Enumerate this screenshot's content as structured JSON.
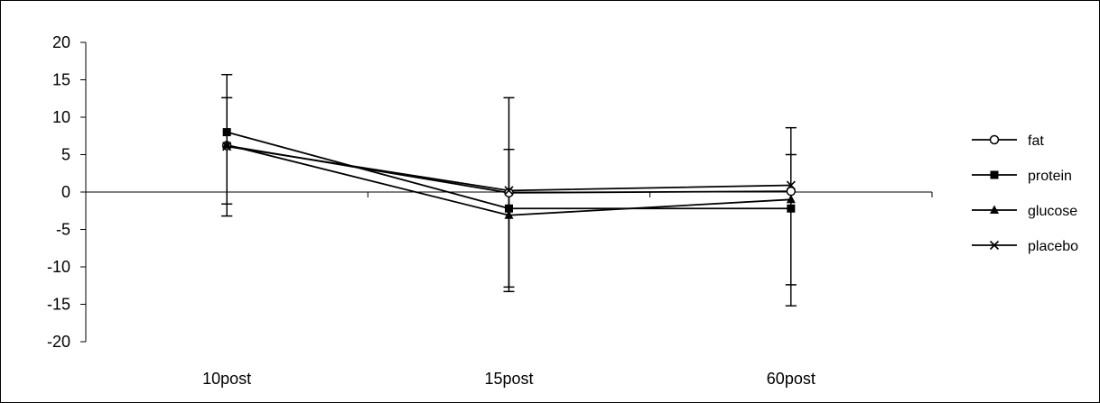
{
  "chart_data": {
    "type": "line",
    "title": "",
    "xlabel": "",
    "ylabel": "",
    "categories": [
      "10post",
      "15post",
      "60post"
    ],
    "ylim": [
      -20,
      20
    ],
    "yticks": [
      20,
      15,
      10,
      5,
      0,
      -5,
      -10,
      -15,
      -20
    ],
    "grid": false,
    "legend": {
      "position": "right"
    },
    "series": [
      {
        "name": "fat",
        "marker": "circle-open",
        "values": [
          6.2,
          -0.1,
          0.1
        ],
        "error_low": [
          -1.6,
          -12.7,
          -12.4
        ],
        "error_high": [
          12.6,
          12.6,
          8.6
        ]
      },
      {
        "name": "protein",
        "marker": "square",
        "values": [
          8.0,
          -2.2,
          -2.2
        ],
        "error_low": [
          -1.6,
          -13.3,
          -12.4
        ],
        "error_high": [
          15.7,
          5.7,
          8.6
        ]
      },
      {
        "name": "glucose",
        "marker": "triangle",
        "values": [
          6.3,
          -3.1,
          -1.0
        ],
        "error_low": [
          -3.2,
          -13.3,
          -15.2
        ],
        "error_high": [
          15.7,
          5.7,
          5.0
        ]
      },
      {
        "name": "placebo",
        "marker": "x",
        "values": [
          6.1,
          0.2,
          0.9
        ],
        "error_low": [
          -3.2,
          -12.7,
          -15.2
        ],
        "error_high": [
          12.6,
          12.6,
          5.0
        ]
      }
    ],
    "colors": {
      "line": "#000000",
      "axis": "#000000"
    }
  }
}
